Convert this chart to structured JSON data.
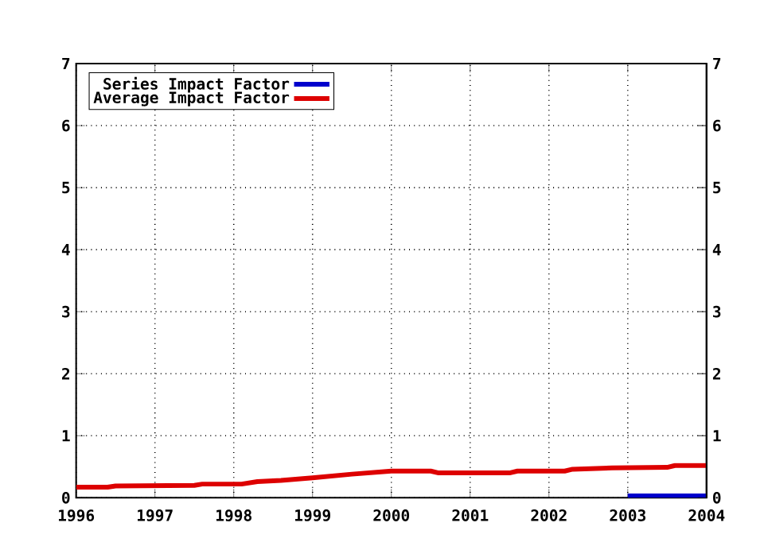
{
  "chart_data": {
    "type": "line",
    "xlim": [
      1996,
      2004
    ],
    "xticks": [
      1996,
      1997,
      1998,
      1999,
      2000,
      2001,
      2002,
      2003,
      2004
    ],
    "ylim": [
      0,
      7
    ],
    "yticks": [
      0,
      1,
      2,
      3,
      4,
      5,
      6,
      7
    ],
    "y2lim": [
      0,
      7
    ],
    "y2ticks": [
      0,
      1,
      2,
      3,
      4,
      5,
      6,
      7
    ],
    "grid": true,
    "legend": "top left",
    "line_style": "solid",
    "marker": "none",
    "series": [
      {
        "name": "Series Impact Factor",
        "color": "#0000cc",
        "x": [
          2003,
          2004
        ],
        "values": [
          0.03,
          0.03
        ]
      },
      {
        "name": "Average Impact Factor",
        "color": "#dd0000",
        "x": [
          1996,
          1996.4,
          1996.5,
          1997.5,
          1997.6,
          1998.1,
          1998.3,
          1998.6,
          1999,
          1999.5,
          2000,
          2000.5,
          2000.6,
          2001.5,
          2001.6,
          2002.2,
          2002.3,
          2002.8,
          2003.5,
          2003.6,
          2004
        ],
        "values": [
          0.17,
          0.17,
          0.19,
          0.2,
          0.22,
          0.22,
          0.26,
          0.28,
          0.32,
          0.38,
          0.43,
          0.43,
          0.4,
          0.4,
          0.43,
          0.43,
          0.46,
          0.48,
          0.49,
          0.52,
          0.52
        ]
      }
    ]
  }
}
